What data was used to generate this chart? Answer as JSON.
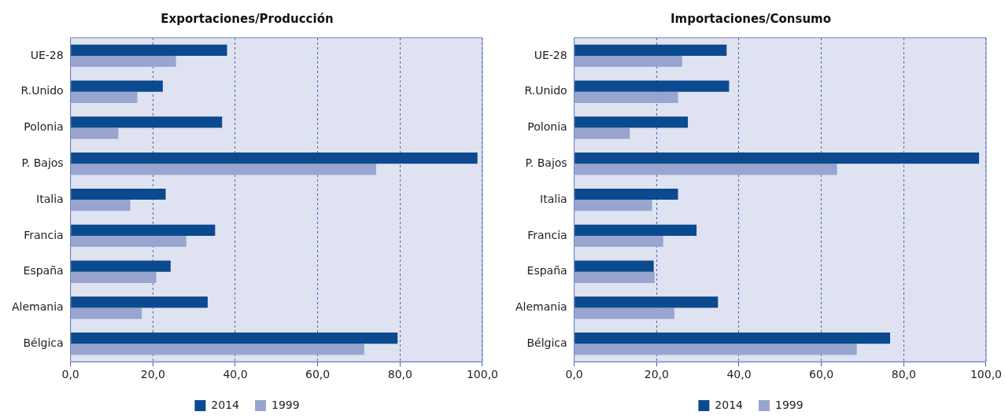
{
  "chart_data": [
    {
      "type": "bar",
      "orientation": "horizontal",
      "title": "Exportaciones/Producción",
      "categories": [
        "UE-28",
        "R.Unido",
        "Polonia",
        "P. Bajos",
        "Italia",
        "Francia",
        "España",
        "Alemania",
        "Bélgica"
      ],
      "series": [
        {
          "name": "2014",
          "color": "#0b4a8e",
          "values": [
            38.0,
            22.4,
            36.8,
            98.8,
            23.1,
            35.1,
            24.3,
            33.3,
            79.4
          ]
        },
        {
          "name": "1999",
          "color": "#97a5cf",
          "values": [
            25.6,
            16.2,
            11.6,
            74.2,
            14.5,
            28.1,
            20.8,
            17.3,
            71.3
          ]
        }
      ],
      "xlim": [
        0,
        100
      ],
      "xticks": [
        {
          "value": 0,
          "label": "0,0"
        },
        {
          "value": 20,
          "label": "20,0"
        },
        {
          "value": 40,
          "label": "40,0"
        },
        {
          "value": 60,
          "label": "60,0"
        },
        {
          "value": 80,
          "label": "80,0"
        },
        {
          "value": 100,
          "label": "100,0"
        }
      ],
      "grid": "x",
      "legend": "bottom"
    },
    {
      "type": "bar",
      "orientation": "horizontal",
      "title": "Importaciones/Consumo",
      "categories": [
        "UE-28",
        "R.Unido",
        "Polonia",
        "P. Bajos",
        "Italia",
        "Francia",
        "España",
        "Alemania",
        "Bélgica"
      ],
      "series": [
        {
          "name": "2014",
          "color": "#0b4a8e",
          "values": [
            37.0,
            37.6,
            27.6,
            98.3,
            25.2,
            29.7,
            19.3,
            34.9,
            76.7
          ]
        },
        {
          "name": "1999",
          "color": "#97a5cf",
          "values": [
            26.2,
            25.2,
            13.5,
            63.8,
            18.9,
            21.6,
            19.5,
            24.3,
            68.6
          ]
        }
      ],
      "xlim": [
        0,
        100
      ],
      "xticks": [
        {
          "value": 0,
          "label": "0,0"
        },
        {
          "value": 20,
          "label": "20,0"
        },
        {
          "value": 40,
          "label": "40,0"
        },
        {
          "value": 60,
          "label": "60,0"
        },
        {
          "value": 80,
          "label": "80,0"
        },
        {
          "value": 100,
          "label": "100,0"
        }
      ],
      "grid": "x",
      "legend": "bottom"
    }
  ]
}
